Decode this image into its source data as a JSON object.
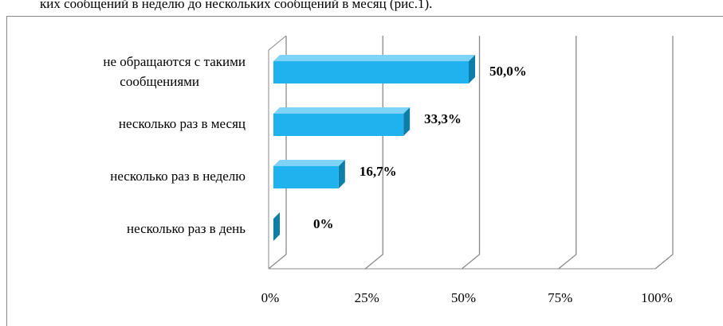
{
  "caption": "ких сообщений в неделю до нескольких сообщений в месяц (рис.1).",
  "chart_data": {
    "type": "bar3d-horizontal",
    "categories": [
      "не обращаются с такими сообщениями",
      "несколько раз в месяц",
      "несколько раз в неделю",
      "несколько раз в день"
    ],
    "values": [
      50,
      33.3,
      16.7,
      0
    ],
    "value_labels": [
      "50,0%",
      "33,3%",
      "16,7%",
      "0%"
    ],
    "color": "#1fb2ef",
    "xlim": [
      0,
      100
    ],
    "xticks": [
      {
        "value": 0,
        "label": "0%"
      },
      {
        "value": 25,
        "label": "25%"
      },
      {
        "value": 50,
        "label": "50%"
      },
      {
        "value": 75,
        "label": "75%"
      },
      {
        "value": 100,
        "label": "100%"
      }
    ],
    "grid": true
  }
}
